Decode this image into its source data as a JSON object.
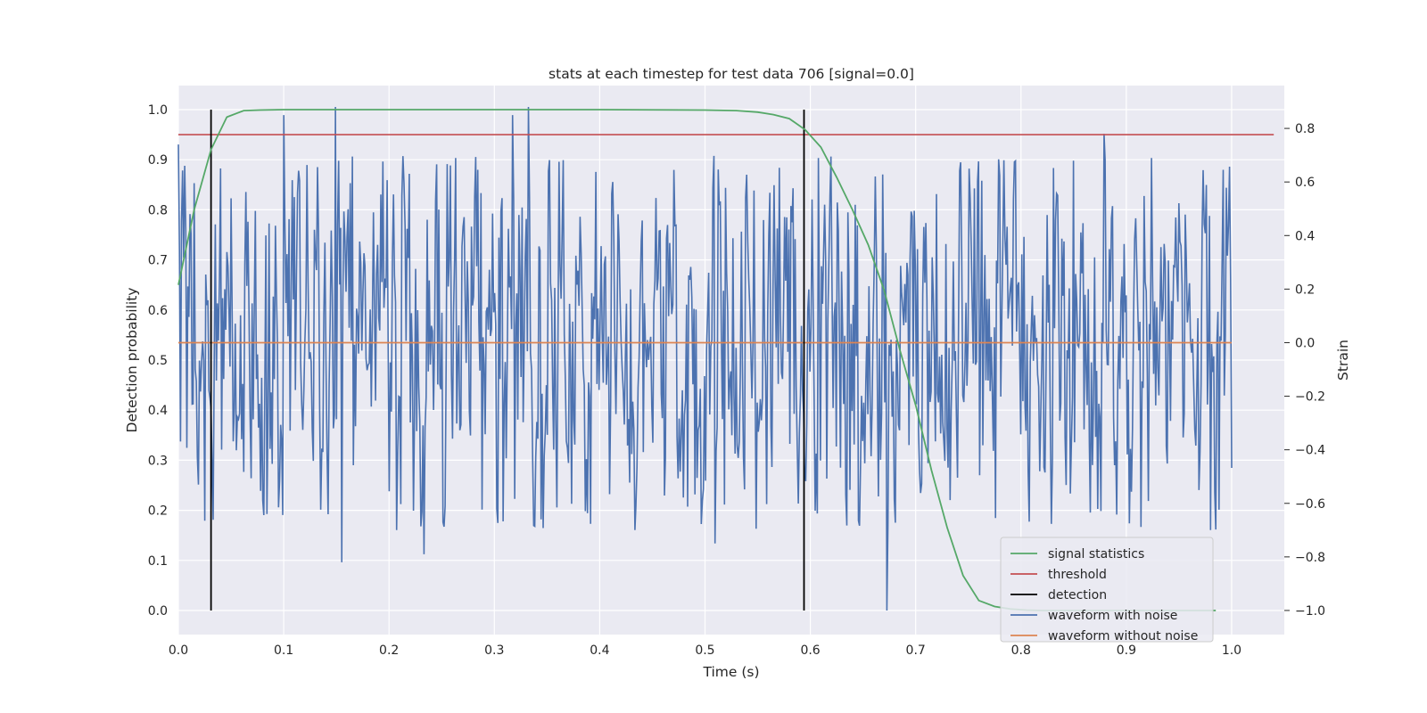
{
  "chart_data": {
    "type": "line",
    "title": "stats at each timestep for test data 706 [signal=0.0]",
    "xlabel": "Time (s)",
    "ylabel_left": "Detection probability",
    "ylabel_right": "Strain",
    "xlim": [
      0.0,
      1.05
    ],
    "ylim_left": [
      -0.048,
      1.048
    ],
    "ylim_right": [
      -1.09,
      0.96
    ],
    "x_ticks": [
      "0.0",
      "0.1",
      "0.2",
      "0.3",
      "0.4",
      "0.5",
      "0.6",
      "0.7",
      "0.8",
      "0.9",
      "1.0"
    ],
    "y_ticks_left": [
      "0.0",
      "0.1",
      "0.2",
      "0.3",
      "0.4",
      "0.5",
      "0.6",
      "0.7",
      "0.8",
      "0.9",
      "1.0"
    ],
    "y_ticks_right": [
      "−1.0",
      "−0.8",
      "−0.6",
      "−0.4",
      "−0.2",
      "0.0",
      "0.2",
      "0.4",
      "0.6",
      "0.8"
    ],
    "grid": true,
    "legend_position": "lower-right",
    "colors": {
      "signal_statistics": "#55a868",
      "threshold": "#c44e52",
      "detection": "#000000",
      "waveform_with_noise": "#4c72b0",
      "waveform_without_noise": "#dd8452",
      "plot_background": "#eaeaf2",
      "grid": "#ffffff"
    },
    "series": [
      {
        "name": "signal statistics",
        "axis": "left",
        "x": [
          0.0,
          0.015,
          0.031,
          0.046,
          0.062,
          0.077,
          0.1,
          0.2,
          0.3,
          0.4,
          0.5,
          0.53,
          0.55,
          0.565,
          0.58,
          0.595,
          0.61,
          0.625,
          0.64,
          0.655,
          0.67,
          0.685,
          0.7,
          0.715,
          0.73,
          0.745,
          0.76,
          0.775,
          0.79,
          0.805,
          0.82,
          0.85,
          0.9,
          0.95,
          0.985
        ],
        "y": [
          0.65,
          0.8,
          0.92,
          0.985,
          0.998,
          0.999,
          1.0,
          1.0,
          1.0,
          1.0,
          0.999,
          0.998,
          0.995,
          0.99,
          0.982,
          0.96,
          0.925,
          0.865,
          0.8,
          0.73,
          0.64,
          0.52,
          0.41,
          0.28,
          0.165,
          0.07,
          0.02,
          0.008,
          0.003,
          0.001,
          0.0,
          0.0,
          0.0,
          0.0,
          0.0
        ]
      },
      {
        "name": "threshold",
        "axis": "left",
        "x": [
          0.0,
          1.04
        ],
        "y": [
          0.95,
          0.95
        ]
      },
      {
        "name": "detection",
        "axis": "left",
        "x": [
          0.031,
          0.594
        ],
        "y_range": [
          0.0,
          1.0
        ]
      },
      {
        "name": "waveform with noise",
        "axis": "right",
        "x_range": [
          0.0,
          1.0
        ],
        "n_points": 1000,
        "y_range_observed": [
          -1.0,
          0.88
        ],
        "peaks": [
          {
            "x": 0.0,
            "y": 0.74
          },
          {
            "x": 0.1,
            "y": 0.85
          },
          {
            "x": 0.149,
            "y": 0.88
          },
          {
            "x": 0.155,
            "y": -0.82
          },
          {
            "x": 0.233,
            "y": -0.79
          },
          {
            "x": 0.317,
            "y": 0.85
          },
          {
            "x": 0.332,
            "y": 0.88
          },
          {
            "x": 0.403,
            "y": -0.15
          },
          {
            "x": 0.51,
            "y": -0.75
          },
          {
            "x": 0.673,
            "y": -1.0
          },
          {
            "x": 0.879,
            "y": 0.78
          },
          {
            "x": 0.98,
            "y": -0.7
          }
        ]
      },
      {
        "name": "waveform without noise",
        "axis": "right",
        "x": [
          0.0,
          1.0
        ],
        "y": [
          0.0,
          0.0
        ]
      }
    ],
    "legend": [
      "signal statistics",
      "threshold",
      "detection",
      "waveform with noise",
      "waveform without noise"
    ]
  }
}
